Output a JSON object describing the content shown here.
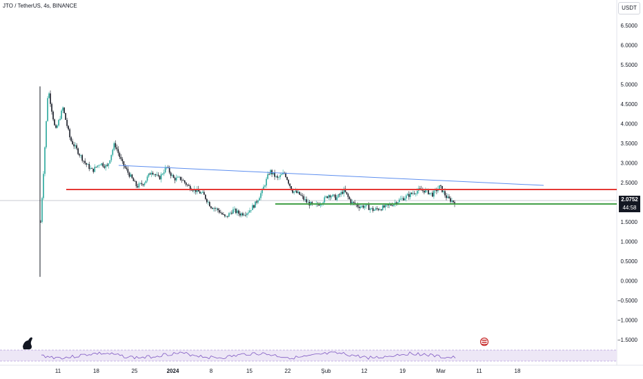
{
  "legend_text": "JTO / TetherUS, 4s, BINANCE",
  "currency_button": "USDT",
  "last_price": "2.0752",
  "countdown": "44:58",
  "colors": {
    "candle_up": "#26a69a",
    "candle_down": "#131722",
    "support_red": "#e53935",
    "support_green": "#43a047",
    "trend_blue": "#5b8def",
    "rsi_band": "#ede7f6",
    "rsi_line": "#7e57c2"
  },
  "chart_data": {
    "type": "line",
    "title": "",
    "xlabel": "",
    "ylabel": "",
    "x_ticks": [
      "11",
      "18",
      "25",
      "2024",
      "8",
      "15",
      "22",
      "Şub",
      "12",
      "19",
      "Mar",
      "11",
      "18"
    ],
    "y_ticks": [
      "6.5000",
      "6.0000",
      "5.5000",
      "5.0000",
      "4.5000",
      "4.0000",
      "3.5000",
      "3.0000",
      "2.5000",
      "2.0000",
      "1.5000",
      "1.0000",
      "0.5000",
      "0.0000",
      "−0.5000",
      "−1.0000",
      "−1.5000"
    ],
    "ylim": [
      -1.5,
      6.5
    ],
    "series": [
      {
        "values": [
          1.5,
          4.9,
          3.8,
          4.4,
          3.6,
          3.3,
          3.0,
          2.8,
          3.0,
          2.9,
          3.5,
          3.0,
          2.7,
          2.4,
          2.5,
          2.8,
          2.6,
          2.9,
          2.6,
          2.6,
          2.4,
          2.3,
          2.2,
          1.9,
          1.8,
          1.6,
          1.8,
          1.7,
          1.75,
          1.95,
          2.3,
          2.8,
          2.6,
          2.75,
          2.3,
          2.2,
          2.0,
          1.9,
          2.0,
          2.2,
          2.1,
          2.3,
          2.0,
          1.9,
          1.9,
          1.8,
          1.85,
          1.9,
          2.0,
          2.1,
          2.2,
          2.3,
          2.3,
          2.2,
          2.4,
          2.1,
          2.0
        ]
      }
    ],
    "annotations": [
      {
        "type": "horizontal_line",
        "color": "red",
        "value": 2.33
      },
      {
        "type": "horizontal_line",
        "color": "green",
        "value": 1.97
      },
      {
        "type": "trend_line",
        "color": "blue",
        "from": 2.95,
        "to": 2.45
      }
    ]
  }
}
